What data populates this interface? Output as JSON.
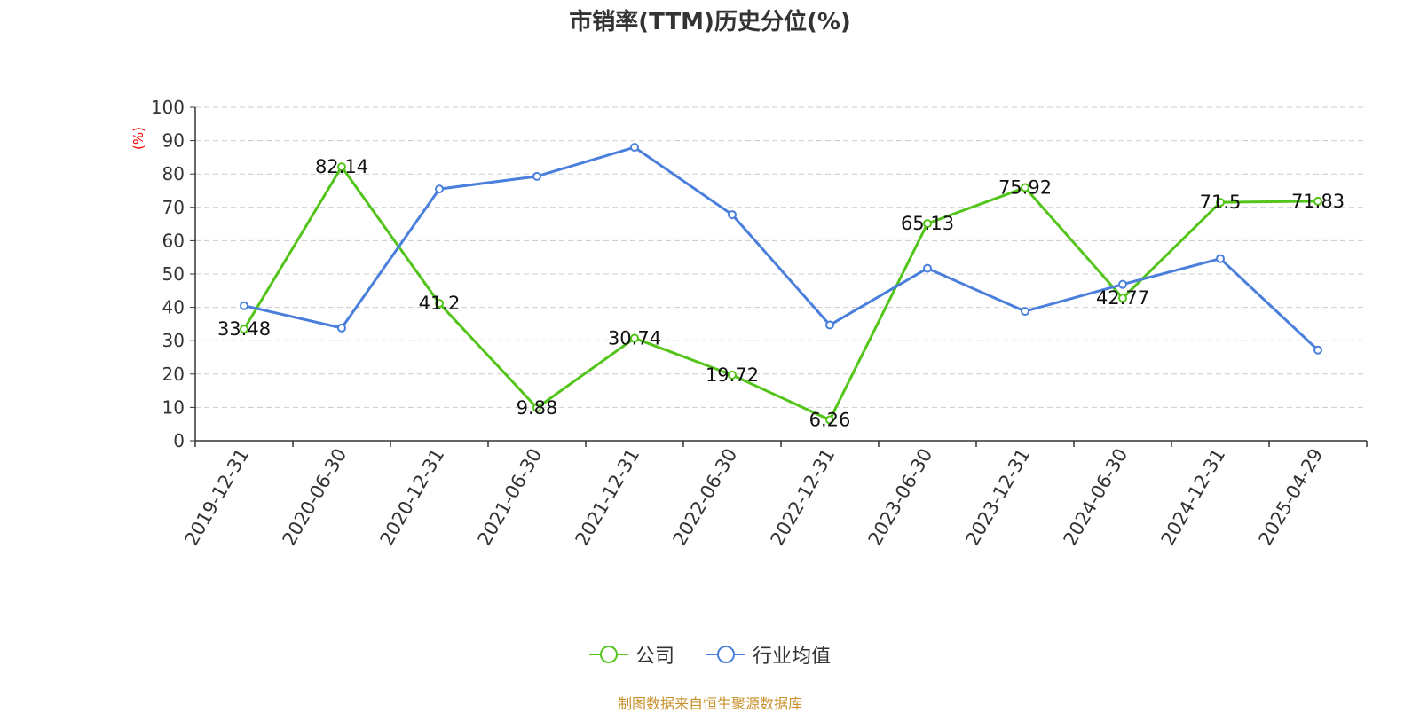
{
  "chart_data": {
    "type": "line",
    "title": "市销率(TTM)历史分位(%)",
    "ylabel": "(%)",
    "ylim": [
      0,
      100
    ],
    "yticks": [
      0,
      10,
      20,
      30,
      40,
      50,
      60,
      70,
      80,
      90,
      100
    ],
    "categories": [
      "2019-12-31",
      "2020-06-30",
      "2020-12-31",
      "2021-06-30",
      "2021-12-31",
      "2022-06-30",
      "2022-12-31",
      "2023-06-30",
      "2023-12-31",
      "2024-06-30",
      "2024-12-31",
      "2025-04-29"
    ],
    "series": [
      {
        "name": "公司",
        "color": "#52c41a",
        "values": [
          33.48,
          82.14,
          41.2,
          9.88,
          30.74,
          19.72,
          6.26,
          65.13,
          75.92,
          42.77,
          71.5,
          71.83
        ],
        "show_labels": true
      },
      {
        "name": "行业均值",
        "color": "#4a7fdc",
        "values": [
          40.5,
          33.8,
          75.5,
          79.3,
          88.0,
          67.8,
          34.7,
          51.7,
          38.8,
          46.9,
          54.6,
          27.2
        ],
        "show_labels": false
      }
    ],
    "grid": true,
    "legend_position": "bottom-center"
  },
  "source_note": "制图数据来自恒生聚源数据库"
}
